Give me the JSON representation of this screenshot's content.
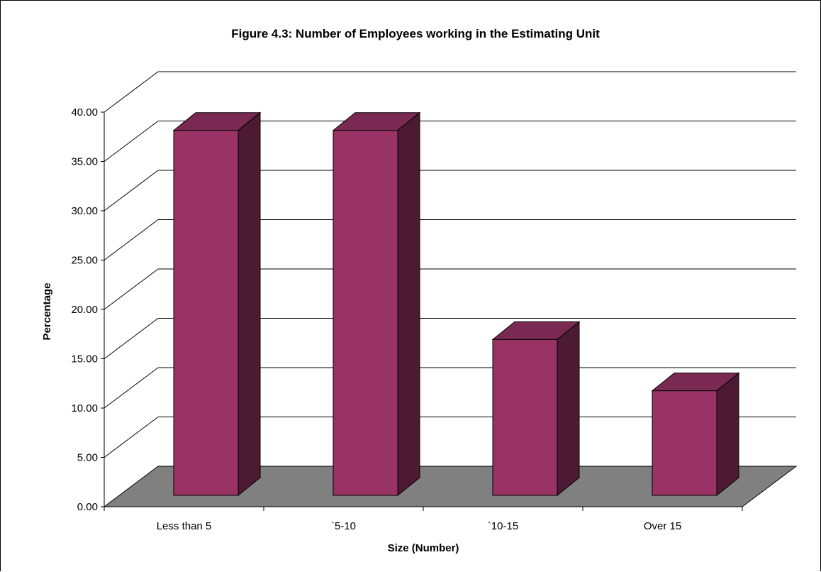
{
  "chart_data": {
    "type": "bar",
    "title": "Figure 4.3: Number of Employees working in the Estimating Unit",
    "xlabel": "Size (Number)",
    "ylabel": "Percentage",
    "categories": [
      "Less than 5",
      "`5-10",
      "`10-15",
      "Over 15"
    ],
    "values": [
      37.0,
      37.0,
      15.8,
      10.6
    ],
    "ylim": [
      0,
      40
    ],
    "yticks": [
      "0.00",
      "5.00",
      "10.00",
      "15.00",
      "20.00",
      "25.00",
      "30.00",
      "35.00",
      "40.00"
    ],
    "grid": true,
    "three_d": true,
    "legend": "none",
    "colors": {
      "bar_front": "#993366",
      "bar_top": "#7A2952",
      "bar_side": "#4D1A33",
      "floor": "#808080",
      "grid": "#000000"
    }
  }
}
